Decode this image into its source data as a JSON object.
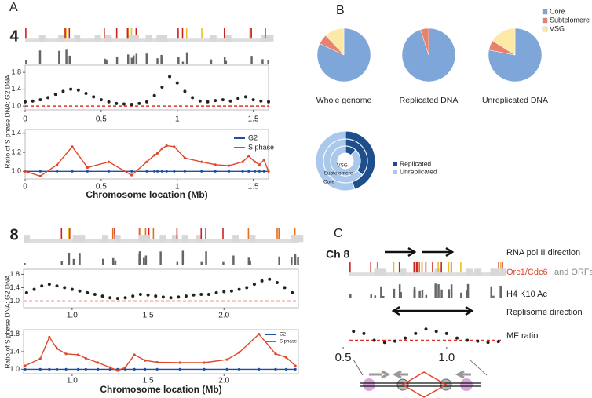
{
  "chart_data": [
    {
      "type": "scatter",
      "panel": "A",
      "chromosome": "4",
      "ylabel": "Ratio of S phase DNA: G2 DNA",
      "color": "#222222",
      "refline": 1.0,
      "x": [
        0,
        0.05,
        0.1,
        0.15,
        0.2,
        0.25,
        0.3,
        0.35,
        0.4,
        0.45,
        0.5,
        0.55,
        0.6,
        0.65,
        0.7,
        0.75,
        0.8,
        0.85,
        0.9,
        0.95,
        1.0,
        1.05,
        1.1,
        1.15,
        1.2,
        1.25,
        1.3,
        1.35,
        1.4,
        1.45,
        1.5,
        1.55,
        1.6
      ],
      "values": [
        1.1,
        1.12,
        1.15,
        1.2,
        1.28,
        1.35,
        1.4,
        1.38,
        1.3,
        1.22,
        1.15,
        1.1,
        1.06,
        1.05,
        1.04,
        1.06,
        1.1,
        1.25,
        1.45,
        1.7,
        1.55,
        1.35,
        1.2,
        1.12,
        1.1,
        1.13,
        1.15,
        1.12,
        1.18,
        1.22,
        1.15,
        1.12,
        1.1
      ],
      "xlim": [
        0,
        1.6
      ],
      "ylim": [
        0.91,
        1.97
      ],
      "xticks": [
        0,
        0.5,
        1,
        1.5
      ],
      "yticks": [
        {
          "value": 1,
          "label": "1.0"
        },
        1.4,
        1.8
      ]
    },
    {
      "type": "line",
      "xlabel": "Chromosome location (Mb)",
      "x": [
        0,
        0.1,
        0.21,
        0.31,
        0.41,
        0.55,
        0.7,
        0.8,
        0.85,
        0.87,
        0.9,
        0.93,
        0.98,
        1.05,
        1.16,
        1.25,
        1.34,
        1.43,
        1.47,
        1.51,
        1.54,
        1.57,
        1.6
      ],
      "series": [
        {
          "name": "G2",
          "color": "#1f4fa0",
          "values": [
            1,
            1,
            1,
            1,
            1,
            1,
            1,
            1,
            1,
            1,
            1,
            1,
            1,
            1,
            1,
            1,
            1,
            1,
            1,
            1,
            1,
            1,
            1
          ]
        },
        {
          "name": "S phase",
          "color": "#e0462a",
          "values": [
            1.0,
            0.95,
            1.07,
            1.26,
            1.04,
            1.1,
            0.96,
            1.1,
            1.17,
            1.19,
            1.24,
            1.27,
            1.26,
            1.14,
            1.1,
            1.07,
            1.06,
            1.1,
            1.16,
            1.1,
            1.07,
            1.12,
            1.0
          ]
        }
      ],
      "xlim": [
        0,
        1.6
      ],
      "ylim": [
        0.92,
        1.44
      ],
      "xticks": [
        0,
        0.5,
        1,
        1.5
      ],
      "yticks": [
        {
          "value": 1,
          "label": "1.0"
        },
        1.2,
        1.4
      ]
    },
    {
      "type": "pie",
      "panel": "B",
      "categories": [
        "Core",
        "Subtelomere",
        "VSG"
      ],
      "colors": [
        "#7fa6d8",
        "#e8826c",
        "#fde9a6"
      ],
      "series": [
        {
          "name": "Whole genome",
          "values": [
            82,
            6,
            12
          ]
        },
        {
          "name": "Replicated DNA",
          "values": [
            95,
            5,
            0
          ]
        },
        {
          "name": "Unreplicated DNA",
          "values": [
            78,
            6,
            16
          ]
        }
      ]
    },
    {
      "type": "donut",
      "categories": [
        "Core",
        "Subtelomere",
        "VSG"
      ],
      "series": [
        {
          "name": "Replicated",
          "color": "#1f4e8c",
          "values": [
            45,
            36,
            12
          ]
        },
        {
          "name": "Unreplicated",
          "color": "#a9c8ec",
          "values": [
            55,
            64,
            88
          ]
        }
      ]
    },
    {
      "type": "scatter",
      "chromosome": "8",
      "ylabel": "Ratio of S phase DNA: G2 DNA",
      "color": "#222222",
      "refline": 1.0,
      "x": [
        0.7,
        0.75,
        0.8,
        0.85,
        0.9,
        0.95,
        1.0,
        1.05,
        1.1,
        1.15,
        1.2,
        1.25,
        1.3,
        1.35,
        1.4,
        1.45,
        1.5,
        1.55,
        1.6,
        1.65,
        1.7,
        1.75,
        1.8,
        1.85,
        1.9,
        1.95,
        2.0,
        2.05,
        2.1,
        2.15,
        2.2,
        2.25,
        2.3,
        2.35,
        2.4,
        2.45
      ],
      "values": [
        1.25,
        1.35,
        1.45,
        1.5,
        1.45,
        1.4,
        1.35,
        1.3,
        1.25,
        1.2,
        1.15,
        1.1,
        1.08,
        1.1,
        1.15,
        1.2,
        1.18,
        1.15,
        1.12,
        1.1,
        1.12,
        1.15,
        1.18,
        1.2,
        1.2,
        1.25,
        1.28,
        1.3,
        1.35,
        1.4,
        1.5,
        1.6,
        1.65,
        1.55,
        1.4,
        1.25
      ],
      "xlim": [
        0.68,
        2.49
      ],
      "ylim": [
        0.8,
        1.95
      ],
      "xticks": [
        {
          "value": 1,
          "label": "1.0"
        },
        1.5,
        {
          "value": 2,
          "label": "2.0"
        }
      ],
      "yticks": [
        {
          "value": 1,
          "label": "1.0"
        },
        1.4,
        1.8
      ]
    },
    {
      "type": "line",
      "xlabel": "Chromosome location (Mb)",
      "x": [
        0.69,
        0.79,
        0.85,
        0.9,
        0.96,
        1.04,
        1.09,
        1.17,
        1.25,
        1.3,
        1.35,
        1.41,
        1.48,
        1.56,
        1.71,
        1.87,
        2.02,
        2.1,
        2.23,
        2.34,
        2.41,
        2.47
      ],
      "series": [
        {
          "name": "G2",
          "color": "#1f4fa0",
          "values": [
            1,
            1,
            1,
            1,
            1,
            1,
            1,
            1,
            1,
            1,
            1,
            1,
            1,
            1,
            1,
            1,
            1,
            1,
            1,
            1,
            1,
            1
          ]
        },
        {
          "name": "S phase",
          "color": "#e0462a",
          "values": [
            1.08,
            1.24,
            1.73,
            1.47,
            1.35,
            1.33,
            1.25,
            1.15,
            1.04,
            0.97,
            1.04,
            1.33,
            1.2,
            1.16,
            1.15,
            1.15,
            1.22,
            1.38,
            1.8,
            1.35,
            1.27,
            1.08
          ]
        }
      ],
      "xlim": [
        0.68,
        2.49
      ],
      "ylim": [
        0.9,
        1.9
      ],
      "xticks": [
        {
          "value": 1,
          "label": "1.0"
        },
        1.5,
        {
          "value": 2,
          "label": "2.0"
        }
      ],
      "yticks": [
        {
          "value": 1,
          "label": "1.0"
        },
        1.4,
        1.8
      ]
    },
    {
      "type": "scatter",
      "panel": "C",
      "chromosome": "Ch 8",
      "color": "#222222",
      "refline": 1.0,
      "annotations": [
        "RNA pol II direction",
        "Orc1/Cdc6",
        "and ORFs",
        "H4 K10 Ac",
        "Replisome direction",
        "MF ratio"
      ],
      "x": [
        0.55,
        0.6,
        0.65,
        0.7,
        0.75,
        0.8,
        0.85,
        0.9,
        0.95,
        1.0,
        1.05,
        1.1,
        1.15,
        1.2,
        1.25
      ],
      "values": [
        1.2,
        1.15,
        1.0,
        0.95,
        0.98,
        1.05,
        1.15,
        1.25,
        1.2,
        1.15,
        1.05,
        1.0,
        0.98,
        0.95,
        0.97
      ],
      "xlim": [
        0.53,
        1.27
      ],
      "ylim": [
        0.85,
        1.5
      ],
      "xticks": [
        0.5,
        {
          "value": 1,
          "label": "1.0"
        }
      ]
    }
  ]
}
